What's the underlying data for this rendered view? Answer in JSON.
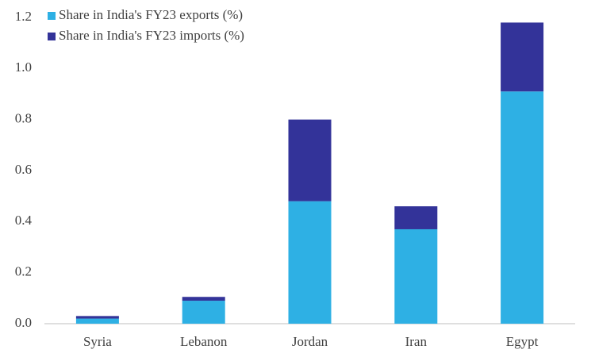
{
  "chart_data": {
    "type": "stacked-bar",
    "categories": [
      "Syria",
      "Lebanon",
      "Jordan",
      "Iran",
      "Egypt"
    ],
    "series": [
      {
        "name": "Share in India's FY23 exports (%)",
        "color": "#2eb0e4",
        "values": [
          0.02,
          0.09,
          0.48,
          0.37,
          0.91
        ]
      },
      {
        "name": "Share in India's FY23 imports (%)",
        "color": "#333399",
        "values": [
          0.01,
          0.015,
          0.32,
          0.09,
          0.27
        ]
      }
    ],
    "ylim": [
      0,
      1.2
    ],
    "yticks": [
      {
        "value": 0,
        "label": "0.0"
      },
      0.2,
      0.4,
      0.6,
      0.8,
      {
        "value": 1,
        "label": "1.0"
      },
      1.2
    ],
    "grid": false,
    "legend": "top-left"
  }
}
